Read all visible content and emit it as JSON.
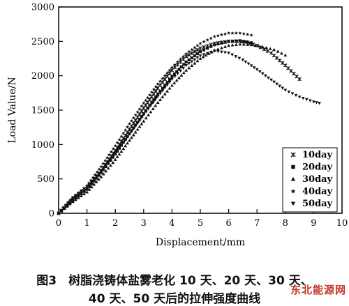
{
  "chart_data": {
    "type": "scatter",
    "xlabel": "Displacement/mm",
    "ylabel": "Load Value/N",
    "xlim": [
      0,
      10
    ],
    "ylim": [
      0,
      3000
    ],
    "xticks": [
      0,
      1,
      2,
      3,
      4,
      5,
      6,
      7,
      8,
      9,
      10
    ],
    "yticks": [
      0,
      500,
      1000,
      1500,
      2000,
      2500,
      3000
    ],
    "grid": false,
    "legend_position": "bottom-right",
    "series": [
      {
        "name": "10day",
        "marker": "x",
        "x": [
          0,
          0.5,
          1,
          1.5,
          2,
          2.5,
          3,
          3.5,
          4,
          4.5,
          5,
          5.5,
          6,
          6.3,
          6.6,
          7,
          7.5,
          8,
          8.5
        ],
        "y": [
          0,
          200,
          360,
          620,
          910,
          1220,
          1530,
          1820,
          2080,
          2280,
          2400,
          2470,
          2500,
          2500,
          2490,
          2440,
          2330,
          2150,
          1950
        ]
      },
      {
        "name": "20day",
        "marker": "square",
        "x": [
          0,
          0.5,
          1,
          1.5,
          2,
          2.5,
          3,
          3.5,
          4,
          4.5,
          5,
          5.5,
          6,
          6.4,
          6.8
        ],
        "y": [
          0,
          190,
          350,
          590,
          860,
          1160,
          1450,
          1730,
          1990,
          2200,
          2350,
          2450,
          2500,
          2510,
          2480
        ]
      },
      {
        "name": "30day",
        "marker": "triangle-up",
        "x": [
          0,
          0.5,
          1,
          1.5,
          2,
          2.5,
          3,
          3.5,
          4,
          4.5,
          5,
          5.5,
          6,
          6.4,
          6.8,
          7.2,
          7.6,
          8.0
        ],
        "y": [
          0,
          170,
          310,
          530,
          780,
          1060,
          1340,
          1610,
          1860,
          2080,
          2250,
          2370,
          2440,
          2460,
          2450,
          2420,
          2380,
          2300
        ]
      },
      {
        "name": "40day",
        "marker": "star",
        "x": [
          0,
          0.5,
          1,
          1.5,
          2,
          2.5,
          3,
          3.5,
          4,
          4.5,
          5,
          5.5,
          6,
          6.4,
          6.8
        ],
        "y": [
          0,
          220,
          400,
          680,
          980,
          1300,
          1600,
          1880,
          2120,
          2320,
          2470,
          2570,
          2620,
          2620,
          2590
        ]
      },
      {
        "name": "50day",
        "marker": "triangle-down",
        "x": [
          0,
          0.5,
          1,
          1.5,
          2,
          2.5,
          3,
          3.5,
          4,
          4.5,
          5,
          5.5,
          6,
          6.5,
          7,
          7.5,
          8,
          8.5,
          9,
          9.2
        ],
        "y": [
          0,
          230,
          390,
          620,
          880,
          1150,
          1430,
          1700,
          1950,
          2150,
          2290,
          2360,
          2330,
          2230,
          2090,
          1940,
          1790,
          1690,
          1620,
          1600
        ]
      }
    ]
  },
  "caption": {
    "line1": "图3　树脂浇铸体盐雾老化 10 天、20 天、30 天、",
    "line2": "40 天、50 天后的拉伸强度曲线"
  },
  "watermark": "东北能源网"
}
